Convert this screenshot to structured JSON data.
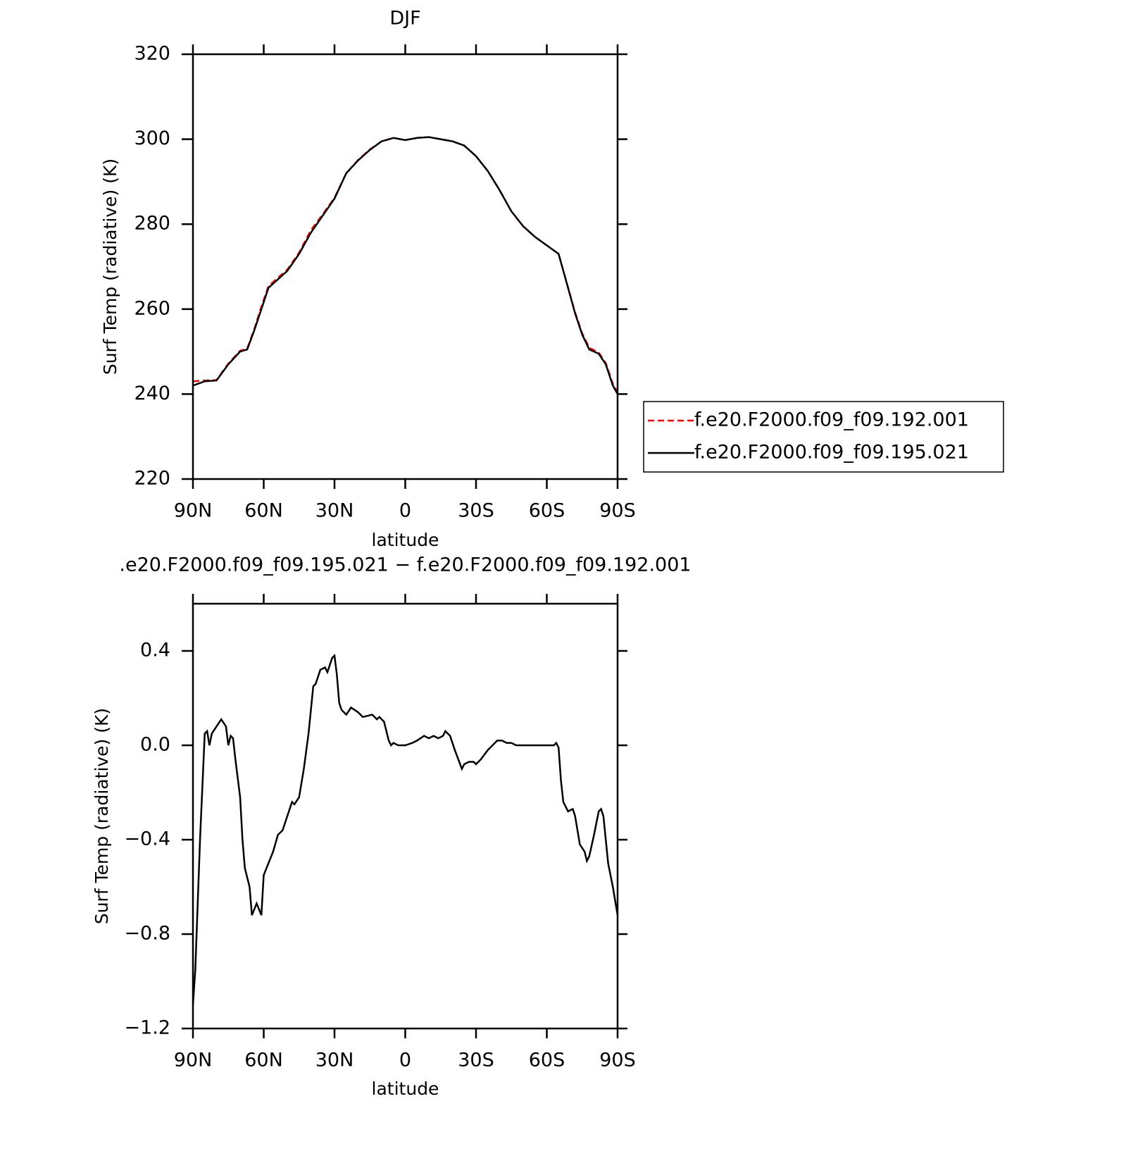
{
  "chart_data": [
    {
      "type": "line",
      "title": "DJF",
      "xlabel": "latitude",
      "ylabel": "Surf Temp (radiative) (K)",
      "xlim": [
        90,
        -90
      ],
      "xticks": [
        {
          "value": 90,
          "label": "90N"
        },
        {
          "value": 60,
          "label": "60N"
        },
        {
          "value": 30,
          "label": "30N"
        },
        0,
        {
          "value": -30,
          "label": "30S"
        },
        {
          "value": -60,
          "label": "60S"
        },
        {
          "value": -90,
          "label": "90S"
        }
      ],
      "ylim": [
        220,
        320
      ],
      "yticks": [
        220,
        240,
        260,
        280,
        300,
        320
      ],
      "legend": "right",
      "x": [
        90,
        85,
        80,
        75,
        70,
        67,
        64,
        61,
        58,
        55,
        50,
        45,
        40,
        35,
        30,
        25,
        20,
        15,
        10,
        5,
        0,
        -5,
        -10,
        -15,
        -20,
        -25,
        -30,
        -35,
        -40,
        -45,
        -50,
        -55,
        -60,
        -65,
        -68,
        -72,
        -75,
        -78,
        -82,
        -85,
        -88,
        -90
      ],
      "series": [
        {
          "name": "f.e20.F2000.f09_f09.192.001",
          "color": "#ff0000",
          "dashed": true,
          "values": [
            243,
            243.2,
            243.3,
            247.2,
            250.2,
            250.7,
            255.3,
            260.6,
            265.4,
            266.9,
            269.3,
            273.3,
            278.6,
            282.3,
            286.2,
            292,
            295.1,
            297.6,
            299.5,
            300.3,
            299.8,
            300.3,
            300.5,
            300,
            299.5,
            298.5,
            296,
            292.5,
            288,
            283,
            279.5,
            277,
            275,
            273,
            267.1,
            259.2,
            254.3,
            250.9,
            249.8,
            247.3,
            242.4,
            240.4
          ]
        },
        {
          "name": "f.e20.F2000.f09_f09.195.021",
          "color": "#000000",
          "dashed": false,
          "values": [
            242,
            243,
            243.2,
            247,
            250,
            250.5,
            255,
            260,
            265,
            266.5,
            269,
            273,
            278,
            282,
            286,
            292,
            295,
            297.5,
            299.5,
            300.3,
            299.8,
            300.3,
            300.5,
            300,
            299.5,
            298.5,
            296,
            292.5,
            288,
            283,
            279.5,
            277,
            275,
            273,
            267,
            259,
            254,
            250.5,
            249.5,
            247,
            242,
            240
          ]
        }
      ]
    },
    {
      "type": "line",
      "title": ".e20.F2000.f09_f09.195.021 − f.e20.F2000.f09_f09.192.001",
      "xlabel": "latitude",
      "ylabel": "Surf Temp (radiative) (K)",
      "xlim": [
        90,
        -90
      ],
      "xticks": [
        {
          "value": 90,
          "label": "90N"
        },
        {
          "value": 60,
          "label": "60N"
        },
        {
          "value": 30,
          "label": "30N"
        },
        0,
        {
          "value": -30,
          "label": "30S"
        },
        {
          "value": -60,
          "label": "60S"
        },
        {
          "value": -90,
          "label": "90S"
        }
      ],
      "ylim": [
        -1.2,
        0.6
      ],
      "yticks": [
        {
          "value": -1.2,
          "label": "−1.2"
        },
        {
          "value": -0.8,
          "label": "−0.8"
        },
        {
          "value": -0.4,
          "label": "−0.4"
        },
        {
          "value": 0,
          "label": "0.0"
        },
        0.4
      ],
      "color": "#000000",
      "x": [
        90,
        89,
        87,
        85,
        84,
        83,
        82,
        80,
        78,
        76,
        75,
        74,
        73,
        72,
        70,
        69,
        68,
        66,
        65,
        63,
        61,
        60,
        58,
        56,
        54,
        52,
        50,
        48,
        47,
        45,
        43,
        41,
        39,
        38,
        36,
        34,
        33,
        31,
        30,
        29,
        28,
        27,
        25,
        23,
        20,
        18,
        14,
        12,
        11,
        9,
        7,
        6,
        5,
        3,
        0,
        -3,
        -5,
        -8,
        -10,
        -12,
        -14,
        -16,
        -17,
        -19,
        -21,
        -24,
        -25,
        -27,
        -29,
        -30,
        -32,
        -35,
        -37,
        -39,
        -41,
        -43,
        -45,
        -47,
        -55,
        -63,
        -64,
        -65,
        -66,
        -67,
        -69,
        -71,
        -72,
        -74,
        -76,
        -77,
        -78,
        -80,
        -82,
        -83,
        -84,
        -86,
        -88,
        -90
      ],
      "values": [
        -1.1,
        -0.95,
        -0.4,
        0.05,
        0.06,
        0.0,
        0.05,
        0.08,
        0.11,
        0.08,
        0.0,
        0.04,
        0.03,
        -0.06,
        -0.22,
        -0.4,
        -0.52,
        -0.6,
        -0.72,
        -0.67,
        -0.72,
        -0.55,
        -0.5,
        -0.45,
        -0.38,
        -0.36,
        -0.3,
        -0.24,
        -0.25,
        -0.22,
        -0.1,
        0.05,
        0.25,
        0.26,
        0.32,
        0.33,
        0.31,
        0.37,
        0.38,
        0.3,
        0.18,
        0.15,
        0.13,
        0.16,
        0.14,
        0.12,
        0.13,
        0.11,
        0.12,
        0.1,
        0.02,
        0.0,
        0.01,
        0.0,
        0.0,
        0.01,
        0.02,
        0.04,
        0.03,
        0.04,
        0.03,
        0.04,
        0.06,
        0.04,
        -0.02,
        -0.1,
        -0.08,
        -0.07,
        -0.07,
        -0.08,
        -0.06,
        -0.02,
        0.0,
        0.02,
        0.02,
        0.01,
        0.01,
        0.0,
        0.0,
        0.0,
        0.01,
        -0.01,
        -0.15,
        -0.24,
        -0.28,
        -0.27,
        -0.3,
        -0.42,
        -0.45,
        -0.49,
        -0.47,
        -0.38,
        -0.28,
        -0.27,
        -0.3,
        -0.5,
        -0.6,
        -0.72
      ]
    }
  ]
}
